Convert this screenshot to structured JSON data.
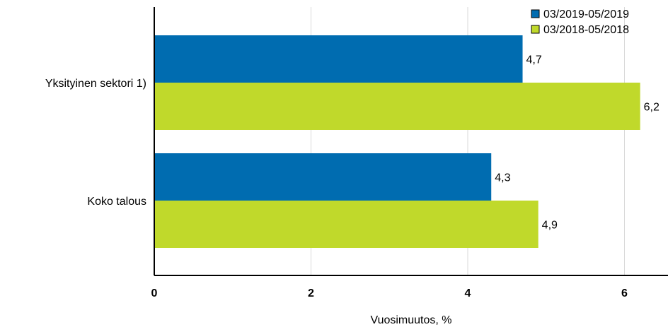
{
  "chart_data": {
    "type": "bar",
    "orientation": "horizontal",
    "categories": [
      "Yksityinen sektori 1)",
      "Koko talous"
    ],
    "series": [
      {
        "name": "03/2019-05/2019",
        "values": [
          4.7,
          4.3
        ],
        "labels": [
          "4,7",
          "4,3"
        ],
        "color": "#006cb0"
      },
      {
        "name": "03/2018-05/2018",
        "values": [
          6.2,
          4.9
        ],
        "labels": [
          "6,2",
          "4,9"
        ],
        "color": "#c0d92b"
      }
    ],
    "xlabel": "Vuosimuutos, %",
    "xlim": [
      0,
      6.5
    ],
    "xticks": [
      0,
      2,
      4,
      6
    ],
    "xtick_labels": [
      "0",
      "2",
      "4",
      "6"
    ],
    "grid": "vertical",
    "legend": "top-right"
  }
}
